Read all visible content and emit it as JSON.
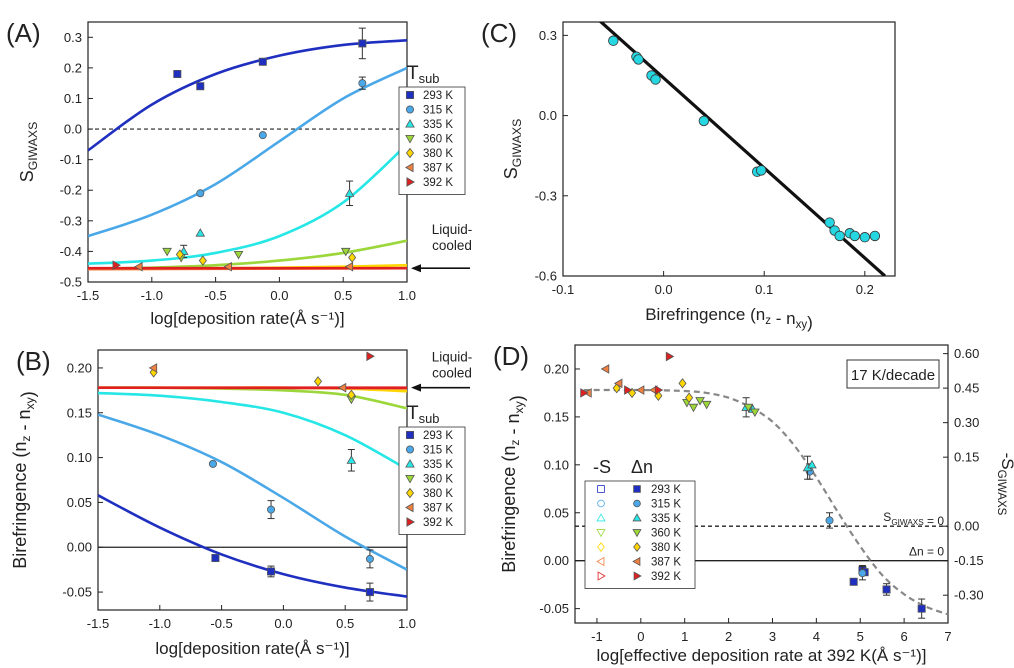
{
  "colors": {
    "293 K": "#1f2fbf",
    "315 K": "#4aa8e8",
    "335 K": "#26e6e6",
    "360 K": "#9bd63a",
    "380 K": "#ffd700",
    "387 K": "#f08040",
    "392 K": "#e02020"
  },
  "chart_data": [
    {
      "id": "A",
      "type": "scatter",
      "panel_label": "(A)",
      "xlabel": "log[deposition rate(Å s⁻¹)]",
      "ylabel": "S_GIWAXS",
      "xlim": [
        -1.5,
        1.0
      ],
      "ylim": [
        -0.5,
        0.35
      ],
      "xticks": [
        -1.5,
        -1.0,
        -0.5,
        0.0,
        0.5,
        1.0
      ],
      "xtick_labels": [
        "-1.5",
        "-1.0",
        "-0.5",
        "0.0",
        "0.5",
        "1.0"
      ],
      "yticks": [
        -0.5,
        -0.4,
        -0.3,
        -0.2,
        -0.1,
        0.0,
        0.1,
        0.2,
        0.3
      ],
      "ytick_labels": [
        "-0.5",
        "-0.4",
        "-0.3",
        "-0.2",
        "-0.1",
        "0.0",
        "0.1",
        "0.2",
        "0.3"
      ],
      "reference_line": {
        "y": 0.0,
        "style": "dashed"
      },
      "legend_title": "T_sub",
      "legend": [
        "293 K",
        "315 K",
        "335 K",
        "360 K",
        "380 K",
        "387 K",
        "392 K"
      ],
      "annotation": {
        "text": [
          "Liquid-",
          "cooled"
        ],
        "y": -0.455
      },
      "series": [
        {
          "name": "293 K",
          "marker": "square",
          "x": [
            -0.8,
            -0.62,
            -0.13,
            0.65
          ],
          "y": [
            0.18,
            0.14,
            0.22,
            0.28
          ],
          "err": [
            0,
            0,
            0,
            0.05
          ],
          "fit": {
            "x": [
              -1.5,
              -1.0,
              -0.5,
              0.0,
              0.5,
              1.0
            ],
            "y": [
              -0.07,
              0.08,
              0.18,
              0.24,
              0.275,
              0.29
            ]
          }
        },
        {
          "name": "315 K",
          "marker": "circle",
          "x": [
            -0.62,
            -0.13,
            0.65
          ],
          "y": [
            -0.21,
            -0.02,
            0.15
          ],
          "err": [
            0,
            0,
            0.02
          ],
          "fit": {
            "x": [
              -1.5,
              -1.0,
              -0.5,
              0.0,
              0.5,
              1.0
            ],
            "y": [
              -0.35,
              -0.28,
              -0.18,
              -0.04,
              0.1,
              0.2
            ]
          }
        },
        {
          "name": "335 K",
          "marker": "triangle-up",
          "x": [
            -0.75,
            -0.62,
            0.55
          ],
          "y": [
            -0.4,
            -0.34,
            -0.21
          ],
          "err": [
            0.02,
            0,
            0.04
          ],
          "fit": {
            "x": [
              -1.5,
              -1.0,
              -0.5,
              0.0,
              0.5,
              1.0
            ],
            "y": [
              -0.44,
              -0.43,
              -0.405,
              -0.35,
              -0.24,
              -0.05
            ]
          }
        },
        {
          "name": "360 K",
          "marker": "triangle-down",
          "x": [
            -0.88,
            -0.77,
            -0.32,
            0.52
          ],
          "y": [
            -0.4,
            -0.42,
            -0.41,
            -0.4
          ],
          "err": [
            0,
            0,
            0,
            0
          ],
          "fit": {
            "x": [
              -1.5,
              -1.0,
              -0.5,
              0.0,
              0.5,
              1.0
            ],
            "y": [
              -0.457,
              -0.453,
              -0.445,
              -0.43,
              -0.405,
              -0.365
            ]
          }
        },
        {
          "name": "380 K",
          "marker": "diamond",
          "x": [
            -0.78,
            -0.6,
            0.57
          ],
          "y": [
            -0.41,
            -0.43,
            -0.42
          ],
          "err": [
            0,
            0,
            0
          ],
          "fit": {
            "x": [
              -1.5,
              -1.0,
              -0.5,
              0.0,
              0.5,
              1.0
            ],
            "y": [
              -0.458,
              -0.457,
              -0.455,
              -0.453,
              -0.45,
              -0.445
            ]
          }
        },
        {
          "name": "387 K",
          "marker": "triangle-left",
          "x": [
            -1.1,
            -0.4,
            0.55
          ],
          "y": [
            -0.45,
            -0.45,
            -0.45
          ],
          "err": [
            0,
            0,
            0
          ],
          "fit": {
            "x": [
              -1.5,
              1.0
            ],
            "y": [
              -0.458,
              -0.455
            ]
          }
        },
        {
          "name": "392 K",
          "marker": "triangle-right",
          "x": [
            -1.28
          ],
          "y": [
            -0.445
          ],
          "err": [
            0
          ],
          "fit": {
            "x": [
              -1.5,
              1.0
            ],
            "y": [
              -0.455,
              -0.455
            ]
          }
        }
      ]
    },
    {
      "id": "B",
      "type": "scatter",
      "panel_label": "(B)",
      "xlabel": "log[deposition rate(Å s⁻¹)]",
      "ylabel": "Birefringence (n_z - n_xy)",
      "xlim": [
        -1.5,
        1.0
      ],
      "ylim": [
        -0.07,
        0.22
      ],
      "xticks": [
        -1.5,
        -1.0,
        -0.5,
        0.0,
        0.5,
        1.0
      ],
      "xtick_labels": [
        "-1.5",
        "-1.0",
        "-0.5",
        "0.0",
        "0.5",
        "1.0"
      ],
      "yticks": [
        -0.05,
        0.0,
        0.05,
        0.1,
        0.15,
        0.2
      ],
      "ytick_labels": [
        "-0.05",
        "0.00",
        "0.05",
        "0.10",
        "0.15",
        "0.20"
      ],
      "reference_line": {
        "y": 0.0,
        "style": "solid"
      },
      "legend_title": "T_sub",
      "legend": [
        "293 K",
        "315 K",
        "335 K",
        "360 K",
        "380 K",
        "387 K",
        "392 K"
      ],
      "annotation": {
        "text": [
          "Liquid-",
          "cooled"
        ],
        "y": 0.178
      },
      "series": [
        {
          "name": "293 K",
          "marker": "square",
          "x": [
            -0.55,
            -0.1,
            0.7
          ],
          "y": [
            -0.012,
            -0.027,
            -0.05
          ],
          "err": [
            0,
            0.006,
            0.01
          ],
          "fit": {
            "x": [
              -1.5,
              -1.0,
              -0.5,
              0.0,
              0.5,
              1.0
            ],
            "y": [
              0.058,
              0.022,
              -0.008,
              -0.03,
              -0.045,
              -0.055
            ]
          }
        },
        {
          "name": "315 K",
          "marker": "circle",
          "x": [
            -0.57,
            -0.1,
            0.7
          ],
          "y": [
            0.093,
            0.042,
            -0.013
          ],
          "err": [
            0,
            0.01,
            0.01
          ],
          "fit": {
            "x": [
              -1.5,
              -1.0,
              -0.5,
              0.0,
              0.5,
              1.0
            ],
            "y": [
              0.148,
              0.125,
              0.095,
              0.055,
              0.012,
              -0.025
            ]
          }
        },
        {
          "name": "335 K",
          "marker": "triangle-up",
          "x": [
            0.55
          ],
          "y": [
            0.097
          ],
          "err": [
            0.012
          ],
          "fit": {
            "x": [
              -1.5,
              -1.0,
              -0.5,
              0.0,
              0.5,
              1.0
            ],
            "y": [
              0.172,
              0.169,
              0.162,
              0.15,
              0.125,
              0.087
            ]
          }
        },
        {
          "name": "360 K",
          "marker": "triangle-down",
          "x": [
            0.55
          ],
          "y": [
            0.165
          ],
          "err": [
            0
          ],
          "fit": {
            "x": [
              -1.5,
              -1.0,
              -0.5,
              0.0,
              0.5,
              1.0
            ],
            "y": [
              0.178,
              0.178,
              0.177,
              0.175,
              0.17,
              0.155
            ]
          }
        },
        {
          "name": "380 K",
          "marker": "diamond",
          "x": [
            -1.05,
            0.28,
            0.55
          ],
          "y": [
            0.195,
            0.185,
            0.17
          ],
          "err": [
            0,
            0,
            0
          ],
          "fit": {
            "x": [
              -1.5,
              -1.0,
              -0.5,
              0.0,
              0.5,
              1.0
            ],
            "y": [
              0.178,
              0.178,
              0.178,
              0.178,
              0.177,
              0.174
            ]
          }
        },
        {
          "name": "387 K",
          "marker": "triangle-left",
          "x": [
            -1.05,
            0.48
          ],
          "y": [
            0.2,
            0.178
          ],
          "err": [
            0,
            0
          ],
          "fit": {
            "x": [
              -1.5,
              1.0
            ],
            "y": [
              0.178,
              0.177
            ]
          }
        },
        {
          "name": "392 K",
          "marker": "triangle-right",
          "x": [
            0.7
          ],
          "y": [
            0.213
          ],
          "err": [
            0
          ],
          "fit": {
            "x": [
              -1.5,
              1.0
            ],
            "y": [
              0.178,
              0.178
            ]
          }
        }
      ]
    },
    {
      "id": "C",
      "type": "scatter",
      "panel_label": "(C)",
      "xlabel": "Birefringence (n_z - n_xy)",
      "ylabel": "S_GIWAXS",
      "xlim": [
        -0.1,
        0.23
      ],
      "ylim": [
        -0.6,
        0.35
      ],
      "xticks": [
        -0.1,
        0.0,
        0.1,
        0.2
      ],
      "xtick_labels": [
        "-0.1",
        "0.0",
        "0.1",
        "0.2"
      ],
      "yticks": [
        -0.6,
        -0.3,
        0.0,
        0.3
      ],
      "ytick_labels": [
        "-0.6",
        "-0.3",
        "0.0",
        "0.3"
      ],
      "fit_line": {
        "x": [
          -0.08,
          0.22
        ],
        "y": [
          0.41,
          -0.6
        ]
      },
      "points": {
        "x": [
          -0.05,
          -0.027,
          -0.025,
          -0.012,
          -0.008,
          0.04,
          0.093,
          0.097,
          0.165,
          0.17,
          0.175,
          0.185,
          0.19,
          0.2,
          0.21
        ],
        "y": [
          0.28,
          0.22,
          0.21,
          0.15,
          0.135,
          -0.02,
          -0.21,
          -0.205,
          -0.4,
          -0.43,
          -0.45,
          -0.44,
          -0.45,
          -0.455,
          -0.45
        ]
      }
    },
    {
      "id": "D",
      "type": "scatter",
      "panel_label": "(D)",
      "xlabel": "log[effective deposition rate at 392 K(Å s⁻¹)]",
      "ylabel": "Birefringence (n_z - n_xy)",
      "ylabel_right": "-S_GIWAXS",
      "xlim": [
        -1.5,
        7.0
      ],
      "ylim": [
        -0.065,
        0.225
      ],
      "xticks": [
        -1,
        0,
        1,
        2,
        3,
        4,
        5,
        6,
        7
      ],
      "xtick_labels": [
        "-1",
        "0",
        "1",
        "2",
        "3",
        "4",
        "5",
        "6",
        "7"
      ],
      "yticks": [
        -0.05,
        0.0,
        0.05,
        0.1,
        0.15,
        0.2
      ],
      "ytick_labels": [
        "-0.05",
        "0.00",
        "0.05",
        "0.10",
        "0.15",
        "0.20"
      ],
      "yticks_right_values": [
        0.6,
        0.45,
        0.3,
        0.15,
        0.0,
        -0.15,
        -0.3
      ],
      "yticks_right_labels": [
        "0.60",
        "0.45",
        "0.30",
        "0.15",
        "0.00",
        "-0.15",
        "-0.30"
      ],
      "yticks_right_positions": [
        0.216,
        0.18,
        0.144,
        0.108,
        0.036,
        0.0,
        -0.036
      ],
      "reference_lines": [
        {
          "y": 0.036,
          "style": "dashed",
          "label": "S_GIWAXS = 0"
        },
        {
          "y": 0.0,
          "style": "solid",
          "label": "Δn = 0"
        }
      ],
      "box_text": "17 K/decade",
      "legend_headers": [
        "-S",
        "Δn"
      ],
      "legend": [
        "293 K",
        "315 K",
        "335 K",
        "360 K",
        "380 K",
        "387 K",
        "392 K"
      ],
      "master_curve": {
        "x": [
          -1.3,
          0,
          1,
          1.5,
          2,
          2.5,
          3,
          3.5,
          4,
          4.5,
          5,
          5.5,
          6,
          6.5,
          7
        ],
        "y": [
          0.178,
          0.178,
          0.177,
          0.175,
          0.17,
          0.16,
          0.145,
          0.12,
          0.087,
          0.05,
          0.015,
          -0.015,
          -0.035,
          -0.048,
          -0.056
        ]
      },
      "series": [
        {
          "name": "293 K",
          "marker": "square",
          "x": [
            5.05,
            5.6,
            6.4,
            4.85,
            5.1
          ],
          "y": [
            -0.01,
            -0.03,
            -0.05,
            -0.022,
            -0.012
          ],
          "err": [
            0.005,
            0.006,
            0.01,
            0,
            0
          ]
        },
        {
          "name": "315 K",
          "marker": "circle",
          "x": [
            3.85,
            4.3,
            5.05
          ],
          "y": [
            0.093,
            0.042,
            -0.013
          ],
          "err": [
            0.008,
            0.008,
            0.007
          ]
        },
        {
          "name": "335 K",
          "marker": "triangle-up",
          "x": [
            2.4,
            2.55,
            3.8,
            3.9
          ],
          "y": [
            0.16,
            0.158,
            0.097,
            0.1
          ],
          "err": [
            0.01,
            0,
            0.012,
            0
          ]
        },
        {
          "name": "360 K",
          "marker": "triangle-down",
          "x": [
            1.05,
            1.2,
            1.35,
            1.5,
            2.45,
            2.6
          ],
          "y": [
            0.165,
            0.16,
            0.167,
            0.163,
            0.16,
            0.155
          ],
          "err": [
            0,
            0,
            0,
            0,
            0,
            0
          ]
        },
        {
          "name": "380 K",
          "marker": "diamond",
          "x": [
            -0.55,
            -0.2,
            0.4,
            0.95,
            1.1
          ],
          "y": [
            0.18,
            0.175,
            0.172,
            0.185,
            0.17
          ],
          "err": [
            0,
            0,
            0,
            0,
            0
          ]
        },
        {
          "name": "387 K",
          "marker": "triangle-left",
          "x": [
            -1.2,
            -0.8,
            -0.5,
            0.0,
            0.3
          ],
          "y": [
            0.175,
            0.2,
            0.185,
            0.178,
            0.178
          ],
          "err": [
            0,
            0,
            0,
            0,
            0
          ]
        },
        {
          "name": "392 K",
          "marker": "triangle-right",
          "x": [
            -1.3,
            -0.3,
            0.4,
            0.65
          ],
          "y": [
            0.175,
            0.178,
            0.178,
            0.213
          ],
          "err": [
            0,
            0,
            0,
            0
          ]
        }
      ]
    }
  ]
}
